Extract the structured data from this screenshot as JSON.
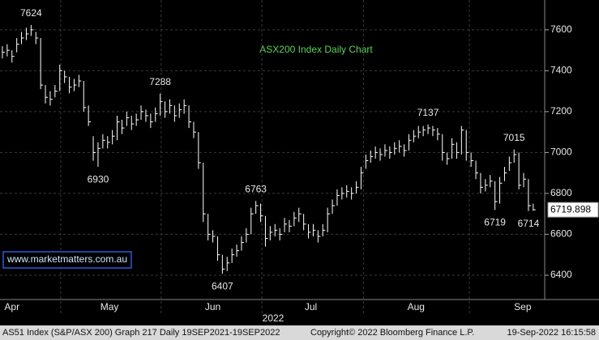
{
  "chart_data": {
    "type": "ohlc",
    "title": "ASX200 Index Daily Chart",
    "title_color": "#5dd35d",
    "watermark": "www.marketmatters.com.au",
    "x_label": "2022",
    "color": "#ffffff",
    "grid": true,
    "xlim": [
      -0.5,
      113.4
    ],
    "xticks": [
      {
        "value": 2,
        "label": "Apr"
      },
      {
        "value": 22.4,
        "label": "May"
      },
      {
        "value": 44,
        "label": "Jun"
      },
      {
        "value": 64.5,
        "label": "Jul"
      },
      {
        "value": 86.5,
        "label": "Aug"
      },
      {
        "value": 108.8,
        "label": "Sep"
      }
    ],
    "ylim": [
      6281,
      7746
    ],
    "yticks": [
      6400,
      6600,
      6800,
      7000,
      7200,
      7400,
      7600
    ],
    "high": [
      7520,
      7530,
      7500,
      7560,
      7590,
      7610,
      7624,
      7590,
      7560,
      7330,
      7300,
      7330,
      7430,
      7400,
      7370,
      7360,
      7380,
      7350,
      7230,
      7080,
      7050,
      7090,
      7080,
      7110,
      7180,
      7160,
      7200,
      7180,
      7190,
      7230,
      7210,
      7190,
      7220,
      7288,
      7250,
      7260,
      7230,
      7240,
      7260,
      7230,
      7150,
      7100,
      6950,
      6700,
      6620,
      6590,
      6500,
      6490,
      6530,
      6550,
      6590,
      6630,
      6730,
      6763,
      6750,
      6690,
      6640,
      6650,
      6630,
      6680,
      6670,
      6710,
      6730,
      6700,
      6650,
      6650,
      6620,
      6650,
      6730,
      6770,
      6820,
      6830,
      6840,
      6830,
      6860,
      6930,
      6990,
      7010,
      7030,
      7020,
      7040,
      7030,
      7050,
      7060,
      7040,
      7090,
      7110,
      7130,
      7130,
      7137,
      7130,
      7120,
      7090,
      7000,
      7070,
      7050,
      7130,
      7110,
      7000,
      6960,
      6900,
      6870,
      6890,
      6860,
      6880,
      6930,
      6980,
      7015,
      7000,
      6900,
      6870,
      6750
    ],
    "low": [
      7460,
      7470,
      7440,
      7490,
      7530,
      7550,
      7570,
      7530,
      7310,
      7240,
      7230,
      7270,
      7300,
      7340,
      7290,
      7300,
      7320,
      7200,
      7130,
      6960,
      6930,
      7020,
      7020,
      7040,
      7060,
      7090,
      7130,
      7110,
      7130,
      7160,
      7150,
      7120,
      7150,
      7180,
      7170,
      7190,
      7150,
      7170,
      7190,
      7120,
      7070,
      6920,
      6660,
      6570,
      6560,
      6470,
      6407,
      6420,
      6460,
      6490,
      6520,
      6560,
      6600,
      6700,
      6660,
      6540,
      6570,
      6590,
      6570,
      6610,
      6610,
      6640,
      6660,
      6620,
      6580,
      6590,
      6560,
      6590,
      6610,
      6700,
      6740,
      6770,
      6780,
      6770,
      6800,
      6820,
      6920,
      6950,
      6970,
      6960,
      6980,
      6970,
      6990,
      7000,
      6980,
      7010,
      7050,
      7070,
      7080,
      7090,
      7080,
      7060,
      6960,
      6940,
      6970,
      6970,
      6990,
      6960,
      6930,
      6870,
      6800,
      6810,
      6830,
      6719,
      6750,
      6860,
      6910,
      6950,
      6820,
      6830,
      6714,
      6715
    ],
    "close": [
      7490,
      7500,
      7470,
      7530,
      7560,
      7580,
      7600,
      7560,
      7330,
      7270,
      7260,
      7300,
      7400,
      7370,
      7320,
      7330,
      7350,
      7220,
      7150,
      7000,
      7020,
      7060,
      7050,
      7080,
      7150,
      7120,
      7170,
      7140,
      7160,
      7200,
      7180,
      7150,
      7190,
      7250,
      7200,
      7230,
      7180,
      7210,
      7230,
      7150,
      7100,
      6950,
      6700,
      6600,
      6590,
      6500,
      6430,
      6460,
      6500,
      6520,
      6560,
      6600,
      6700,
      6740,
      6690,
      6580,
      6610,
      6620,
      6600,
      6650,
      6640,
      6680,
      6700,
      6650,
      6610,
      6620,
      6590,
      6620,
      6700,
      6740,
      6790,
      6800,
      6810,
      6800,
      6830,
      6900,
      6960,
      6980,
      7000,
      6990,
      7010,
      7000,
      7020,
      7030,
      7010,
      7060,
      7080,
      7100,
      7110,
      7120,
      7110,
      7090,
      7000,
      6970,
      7040,
      7000,
      7110,
      7000,
      6960,
      6900,
      6830,
      6840,
      6860,
      6760,
      6850,
      6900,
      6950,
      6990,
      6840,
      6870,
      6740,
      6720
    ],
    "annotations": [
      {
        "x": 6,
        "y": 7624
      },
      {
        "x": 20,
        "y": 6930
      },
      {
        "x": 33,
        "y": 7288
      },
      {
        "x": 46,
        "y": 6407
      },
      {
        "x": 53,
        "y": 6763
      },
      {
        "x": 89,
        "y": 7137
      },
      {
        "x": 107,
        "y": 7015
      },
      {
        "x": 103,
        "y": 6719
      },
      {
        "x": 110,
        "y": 6714
      }
    ],
    "last_value": 6719.898
  },
  "footer": {
    "left": "AS51 Index (S&P/ASX 200) Graph 217  Daily 19SEP2021-19SEP2022",
    "center": "Copyright© 2022 Bloomberg Finance L.P.",
    "right": "19-Sep-2022 16:15:58"
  }
}
